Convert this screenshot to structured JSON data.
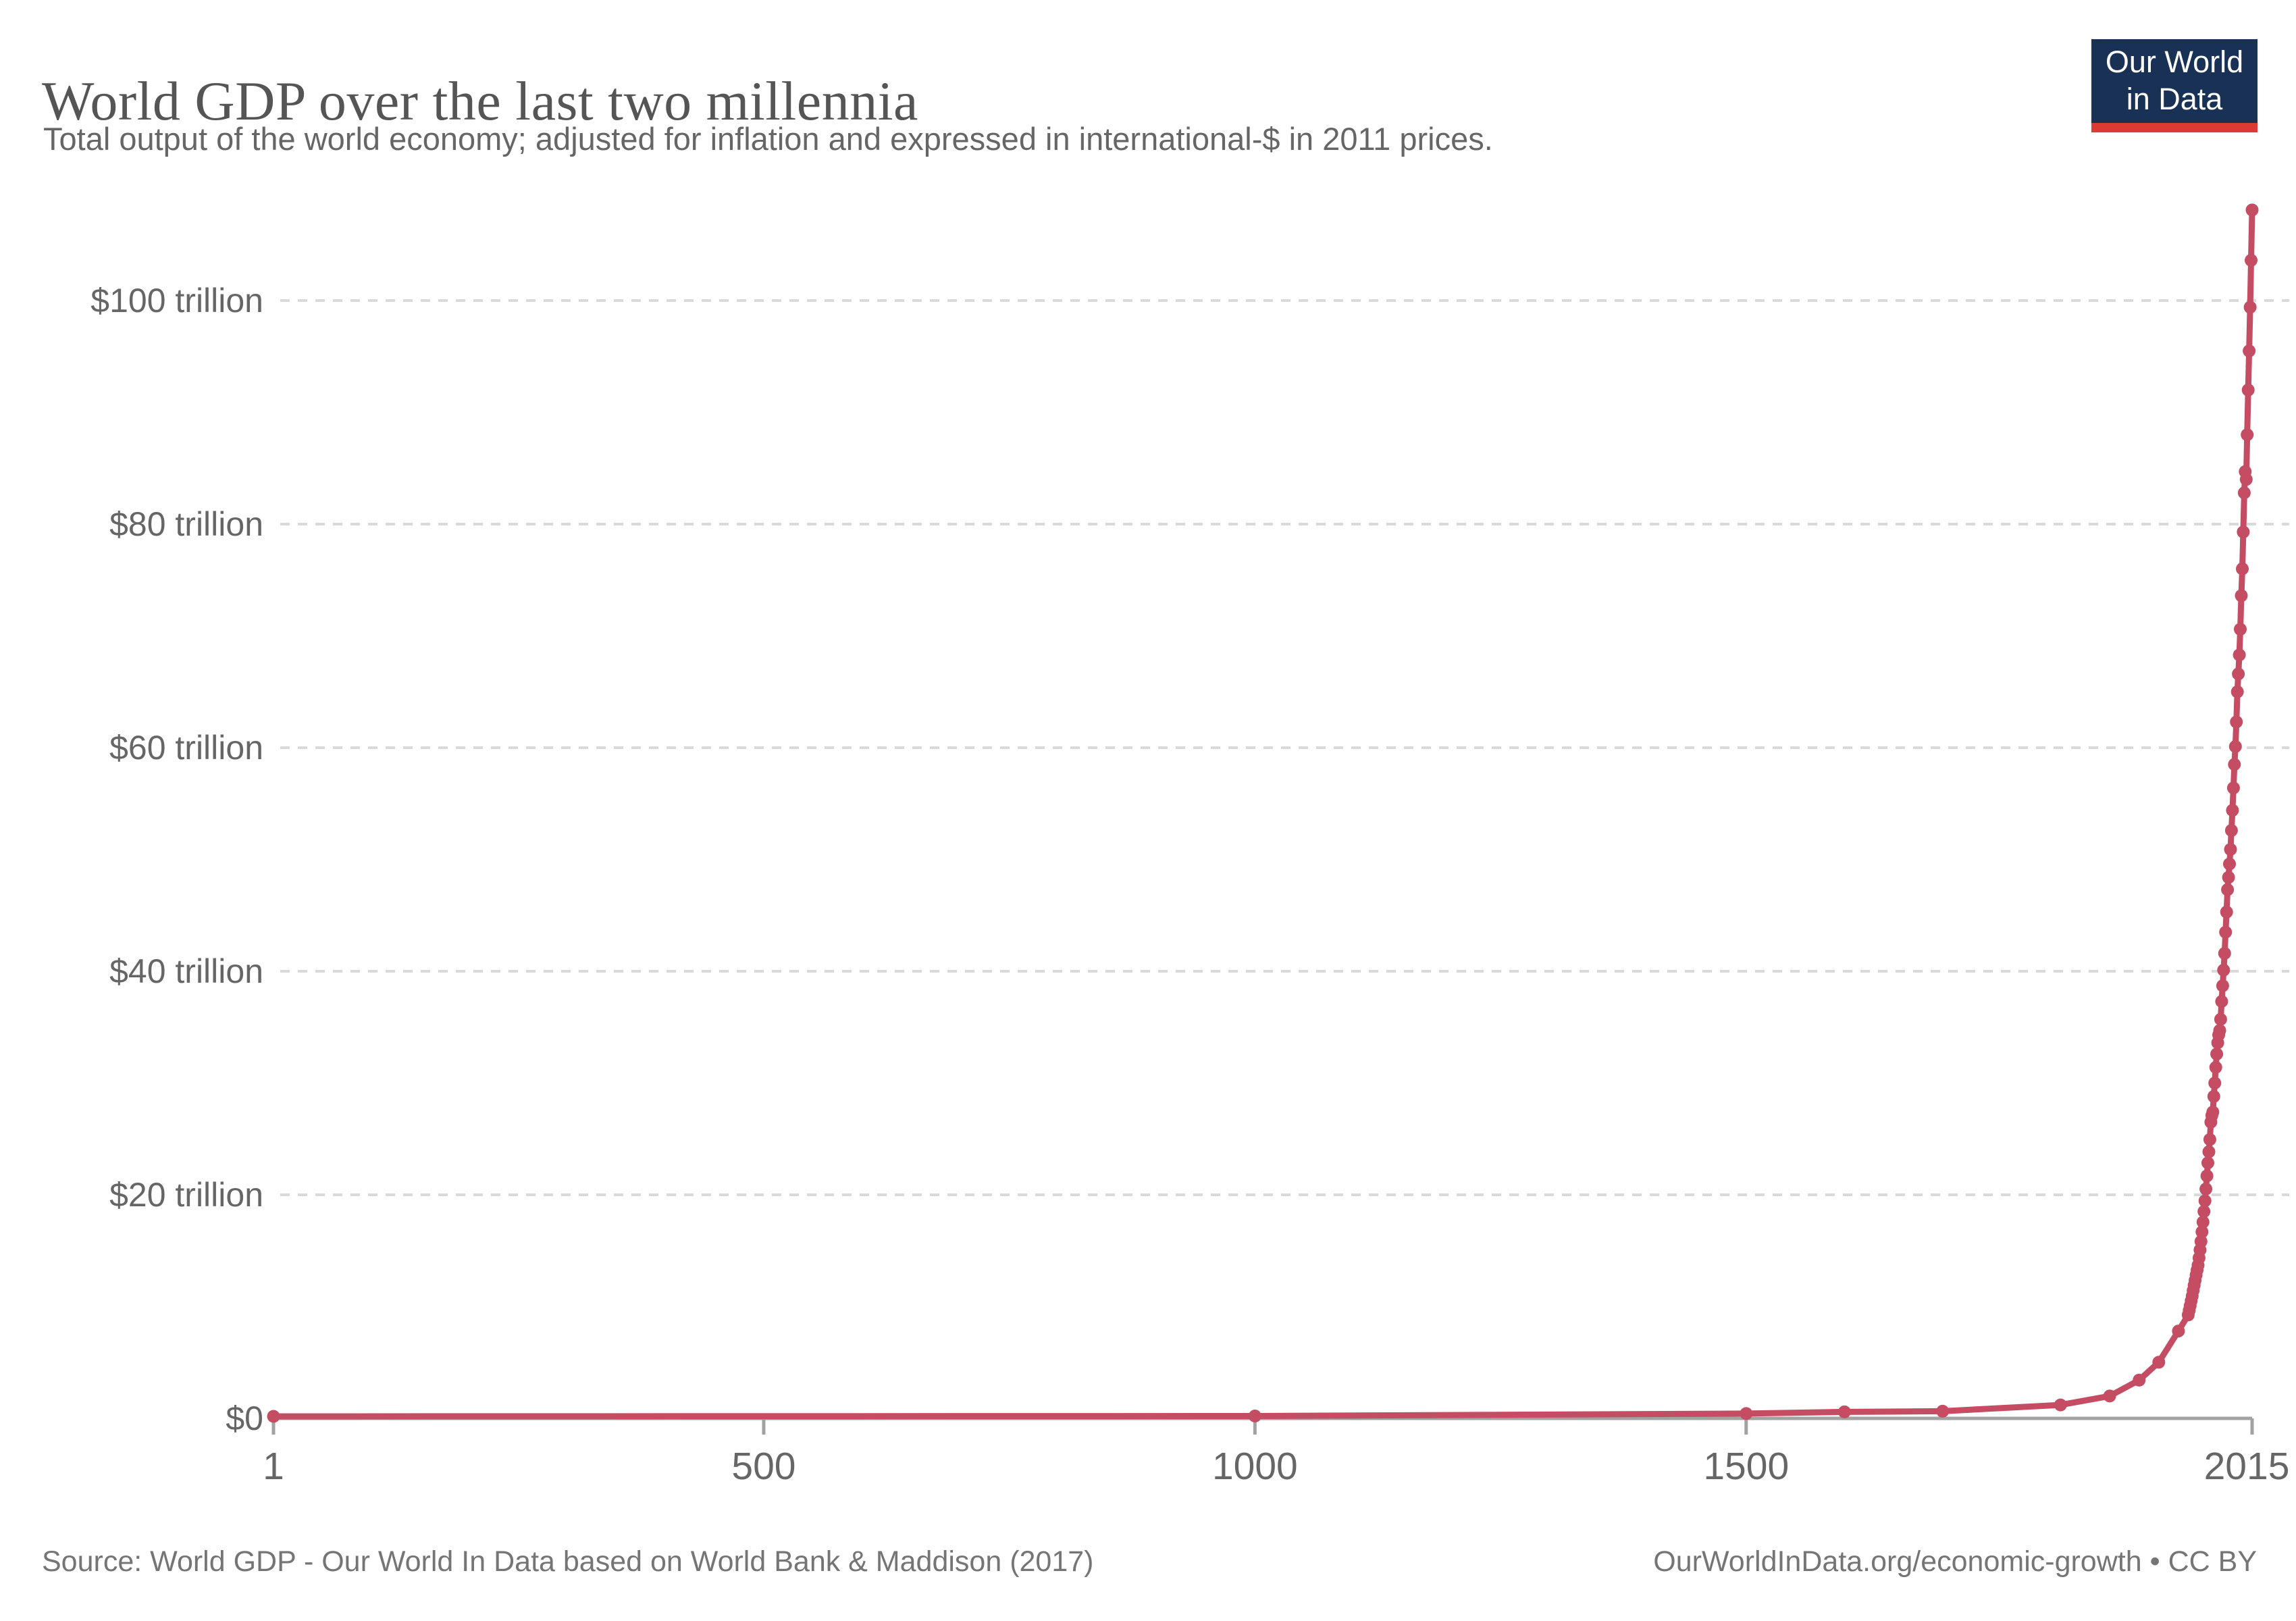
{
  "header": {
    "title": "World GDP over the last two millennia",
    "subtitle": "Total output of the world economy; adjusted for inflation and expressed in international-$ in 2011 prices."
  },
  "logo": {
    "line1": "Our World",
    "line2": "in Data",
    "bg_color": "#1a3156",
    "bar_color": "#dc3a32"
  },
  "footer": {
    "source": "Source: World GDP - Our World In Data based on World Bank & Maddison (2017)",
    "link": "OurWorldInData.org/economic-growth • CC BY"
  },
  "chart_data": {
    "type": "line",
    "title": "World GDP over the last two millennia",
    "series_name": "World GDP",
    "unit": "international-$ in 2011 prices, trillions",
    "xlim": [
      1,
      2015
    ],
    "ylim": [
      0,
      110
    ],
    "grid": "horizontal-dashed",
    "legend_position": "none",
    "markers": true,
    "yticks": [
      {
        "value": 0,
        "label": "$0"
      },
      {
        "value": 20,
        "label": "$20 trillion"
      },
      {
        "value": 40,
        "label": "$40 trillion"
      },
      {
        "value": 60,
        "label": "$60 trillion"
      },
      {
        "value": 80,
        "label": "$80 trillion"
      },
      {
        "value": 100,
        "label": "$100 trillion"
      }
    ],
    "xticks": [
      {
        "value": 1,
        "label": "1"
      },
      {
        "value": 500,
        "label": "500"
      },
      {
        "value": 1000,
        "label": "1000"
      },
      {
        "value": 1500,
        "label": "1500"
      },
      {
        "value": 2015,
        "label": "2015"
      }
    ],
    "points": [
      [
        1,
        0.18
      ],
      [
        1000,
        0.21
      ],
      [
        1500,
        0.43
      ],
      [
        1600,
        0.58
      ],
      [
        1700,
        0.64
      ],
      [
        1820,
        1.2
      ],
      [
        1870,
        2.0
      ],
      [
        1900,
        3.42
      ],
      [
        1920,
        5.02
      ],
      [
        1940,
        7.81
      ],
      [
        1950,
        9.25
      ],
      [
        1951,
        9.67
      ],
      [
        1952,
        10.08
      ],
      [
        1953,
        10.52
      ],
      [
        1954,
        10.94
      ],
      [
        1955,
        11.43
      ],
      [
        1956,
        11.91
      ],
      [
        1957,
        12.35
      ],
      [
        1958,
        12.83
      ],
      [
        1959,
        13.26
      ],
      [
        1960,
        13.7
      ],
      [
        1961,
        14.35
      ],
      [
        1962,
        15.07
      ],
      [
        1963,
        15.83
      ],
      [
        1964,
        16.68
      ],
      [
        1965,
        17.56
      ],
      [
        1966,
        18.51
      ],
      [
        1967,
        19.46
      ],
      [
        1968,
        20.52
      ],
      [
        1969,
        21.69
      ],
      [
        1970,
        22.86
      ],
      [
        1971,
        23.85
      ],
      [
        1972,
        24.95
      ],
      [
        1973,
        26.5
      ],
      [
        1974,
        27.1
      ],
      [
        1975,
        27.4
      ],
      [
        1976,
        28.8
      ],
      [
        1977,
        30.0
      ],
      [
        1978,
        31.4
      ],
      [
        1979,
        32.6
      ],
      [
        1980,
        33.6
      ],
      [
        1981,
        34.3
      ],
      [
        1982,
        34.7
      ],
      [
        1983,
        35.7
      ],
      [
        1984,
        37.3
      ],
      [
        1985,
        38.7
      ],
      [
        1986,
        40.1
      ],
      [
        1987,
        41.6
      ],
      [
        1988,
        43.5
      ],
      [
        1989,
        45.3
      ],
      [
        1990,
        47.3
      ],
      [
        1991,
        48.4
      ],
      [
        1992,
        49.6
      ],
      [
        1993,
        50.9
      ],
      [
        1994,
        52.6
      ],
      [
        1995,
        54.4
      ],
      [
        1996,
        56.4
      ],
      [
        1997,
        58.5
      ],
      [
        1998,
        60.1
      ],
      [
        1999,
        62.3
      ],
      [
        2000,
        65.0
      ],
      [
        2001,
        66.6
      ],
      [
        2002,
        68.3
      ],
      [
        2003,
        70.6
      ],
      [
        2004,
        73.6
      ],
      [
        2005,
        76.0
      ],
      [
        2006,
        79.3
      ],
      [
        2007,
        82.8
      ],
      [
        2008,
        84.7
      ],
      [
        2009,
        84.0
      ],
      [
        2010,
        88.0
      ],
      [
        2011,
        92.0
      ],
      [
        2012,
        95.5
      ],
      [
        2013,
        99.4
      ],
      [
        2014,
        103.6
      ],
      [
        2015,
        108.1
      ]
    ],
    "colors": {
      "line": "#c44d63",
      "grid": "#d9d9d9",
      "axis": "#a2a2a2",
      "tick_label": "#666666",
      "title": "#555555",
      "subtitle": "#666666",
      "footer": "#757575"
    }
  }
}
